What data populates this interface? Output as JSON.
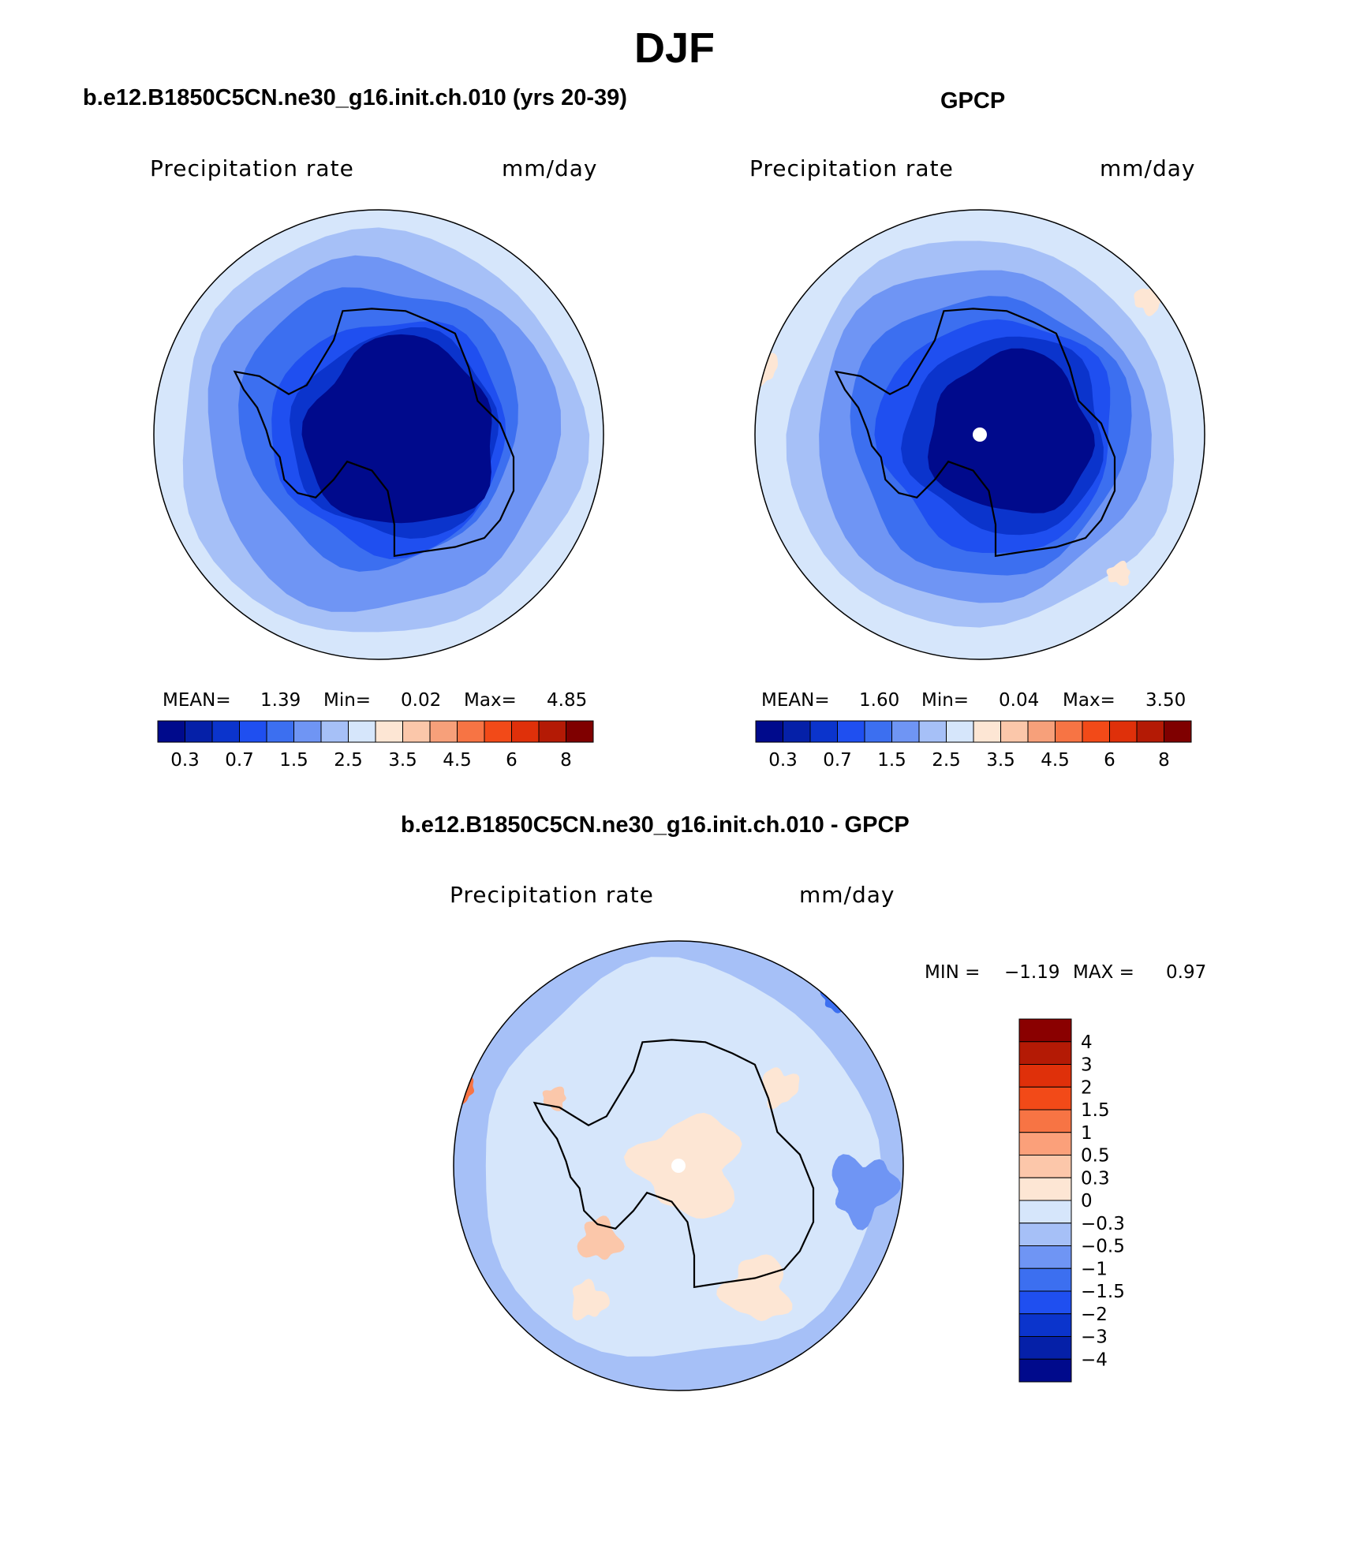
{
  "figure": {
    "title": "DJF"
  },
  "panels": [
    {
      "title": "b.e12.B1850C5CN.ne30_g16.init.ch.010 (yrs 20-39)",
      "variable": "Precipitation rate",
      "units": "mm/day",
      "stats": {
        "mean_label": "MEAN=",
        "mean_value": "1.39",
        "min_label": "Min=",
        "min_value": "0.02",
        "max_label": "Max=",
        "max_value": "4.85"
      }
    },
    {
      "title": "GPCP",
      "variable": "Precipitation rate",
      "units": "mm/day",
      "stats": {
        "mean_label": "MEAN=",
        "mean_value": "1.60",
        "min_label": "Min=",
        "min_value": "0.04",
        "max_label": "Max=",
        "max_value": "3.50"
      }
    },
    {
      "title": "b.e12.B1850C5CN.ne30_g16.init.ch.010 - GPCP",
      "variable": "Precipitation rate",
      "units": "mm/day",
      "stats": {
        "min_label": "MIN =",
        "min_value": "−1.19",
        "max_label": "MAX =",
        "max_value": "0.97"
      }
    }
  ],
  "horizontal_colorbar": {
    "colors": [
      "#000a8c",
      "#0520a8",
      "#0b34cc",
      "#1f4ff0",
      "#3c6ff0",
      "#6f95f4",
      "#a6c0f7",
      "#d6e6fb",
      "#fde6d4",
      "#fbc7aa",
      "#f7a07a",
      "#f77444",
      "#f24a18",
      "#df300a",
      "#b41a05",
      "#7f0000"
    ],
    "tick_labels": [
      "0.3",
      "0.7",
      "1.5",
      "2.5",
      "3.5",
      "4.5",
      "6",
      "8"
    ]
  },
  "vertical_colorbar": {
    "colors_top_to_bottom": [
      "#8a0000",
      "#b41a05",
      "#df300a",
      "#f24a18",
      "#f77444",
      "#fba07a",
      "#fcc7aa",
      "#fde6d4",
      "#d6e6fb",
      "#a6c0f7",
      "#6f95f4",
      "#3c6ff0",
      "#1f4ff0",
      "#0b34cc",
      "#0520a8",
      "#000a8c"
    ],
    "tick_labels": [
      "4",
      "3",
      "2",
      "1.5",
      "1",
      "0.5",
      "0.3",
      "0",
      "−0.3",
      "−0.5",
      "−1",
      "−1.5",
      "−2",
      "−3",
      "−4"
    ]
  }
}
